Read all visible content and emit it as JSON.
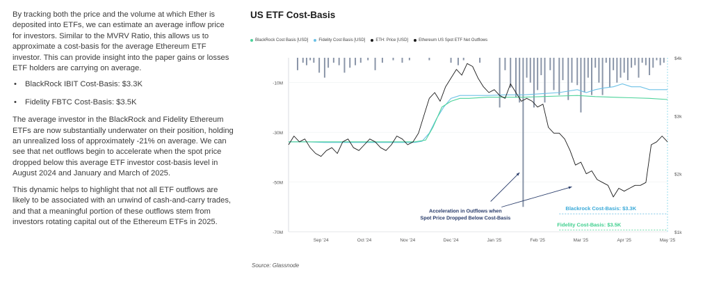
{
  "text": {
    "para1": "By tracking both the price and the volume at which Ether is deposited into ETFs, we can estimate an average inflow price for investors. Similar to the MVRV Ratio, this allows us to approximate a cost-basis for the average Ethereum ETF investor. This can provide insight into the paper gains or losses ETF holders are carrying on average.",
    "bullet1": "BlackRock IBIT Cost-Basis: $3.3K",
    "bullet2": "Fidelity FBTC Cost-Basis: $3.5K",
    "para2": "The average investor in the BlackRock and Fidelity Ethereum ETFs are now substantially underwater on their position, holding an unrealized loss of approximately -21% on average. We can see that net outflows begin to accelerate when the spot price dropped below this average ETF investor cost-basis level in August 2024 and January and March of 2025.",
    "para3": "This dynamic helps to highlight that not all ETF outflows are likely to be associated with an unwind of cash-and-carry trades, and that a meaningful portion of these outflows stem from investors rotating capital out of the Ethereum ETFs in 2025."
  },
  "chart_data": {
    "type": "line",
    "title": "US ETF Cost-Basis",
    "source": "Source: Glassnode",
    "legend": [
      "BlackRock Cost Basis [USD]",
      "Fidelity Cost Basis [USD]",
      "ETH: Price [USD]",
      "Ethereum US Spot ETF Net Outflows"
    ],
    "colors": {
      "blackrock": "#4cd39a",
      "fidelity": "#6cc1e6",
      "price": "#1a1a1a",
      "outflows": "#8a95a8",
      "annotation": "#2a3d6b"
    },
    "x_ticks": [
      "Sep '24",
      "Oct '24",
      "Nov '24",
      "Dec '24",
      "Jan '25",
      "Feb '25",
      "Mar '25",
      "Apr '25",
      "May '25"
    ],
    "left_ticks": [
      "-10M",
      "-30M",
      "-50M",
      "-70M"
    ],
    "right_ticks": [
      "$4k",
      "$3k",
      "$2k",
      "$1k"
    ],
    "left_range": [
      -70,
      0
    ],
    "right_range": [
      1000,
      4000
    ],
    "annotation": [
      "Acceleration in Outflows when",
      "Spot Price Dropped Below Cost-Basis"
    ],
    "blackrock_label": "Blackrock Cost-Basis: $3.3K",
    "fidelity_label": "Fidelity Cost-Basis: $3.5K",
    "price": [
      [
        0,
        2500
      ],
      [
        3,
        2650
      ],
      [
        6,
        2550
      ],
      [
        9,
        2600
      ],
      [
        12,
        2450
      ],
      [
        15,
        2350
      ],
      [
        18,
        2300
      ],
      [
        21,
        2400
      ],
      [
        24,
        2450
      ],
      [
        27,
        2350
      ],
      [
        30,
        2550
      ],
      [
        33,
        2600
      ],
      [
        36,
        2450
      ],
      [
        39,
        2400
      ],
      [
        42,
        2500
      ],
      [
        45,
        2600
      ],
      [
        48,
        2550
      ],
      [
        51,
        2450
      ],
      [
        54,
        2400
      ],
      [
        57,
        2500
      ],
      [
        60,
        2650
      ],
      [
        63,
        2600
      ],
      [
        66,
        2500
      ],
      [
        69,
        2550
      ],
      [
        72,
        2700
      ],
      [
        75,
        3000
      ],
      [
        78,
        3300
      ],
      [
        81,
        3400
      ],
      [
        84,
        3250
      ],
      [
        87,
        3500
      ],
      [
        90,
        3650
      ],
      [
        93,
        3800
      ],
      [
        96,
        3700
      ],
      [
        99,
        3900
      ],
      [
        102,
        3850
      ],
      [
        105,
        3650
      ],
      [
        108,
        3500
      ],
      [
        111,
        3400
      ],
      [
        114,
        3450
      ],
      [
        117,
        3350
      ],
      [
        120,
        3300
      ],
      [
        123,
        3550
      ],
      [
        126,
        3400
      ],
      [
        129,
        3250
      ],
      [
        132,
        3300
      ],
      [
        135,
        3250
      ],
      [
        138,
        3150
      ],
      [
        141,
        3200
      ],
      [
        144,
        2800
      ],
      [
        147,
        2700
      ],
      [
        150,
        2700
      ],
      [
        153,
        2600
      ],
      [
        156,
        2400
      ],
      [
        159,
        2150
      ],
      [
        162,
        2200
      ],
      [
        165,
        2000
      ],
      [
        168,
        2050
      ],
      [
        171,
        1900
      ],
      [
        174,
        1850
      ],
      [
        177,
        1800
      ],
      [
        180,
        1600
      ],
      [
        183,
        1750
      ],
      [
        186,
        1700
      ],
      [
        189,
        1750
      ],
      [
        192,
        1800
      ],
      [
        195,
        1800
      ],
      [
        198,
        1850
      ],
      [
        201,
        2500
      ],
      [
        204,
        2550
      ],
      [
        207,
        2650
      ],
      [
        210,
        2550
      ]
    ],
    "blackrock": [
      [
        0,
        2550
      ],
      [
        10,
        2550
      ],
      [
        20,
        2550
      ],
      [
        30,
        2550
      ],
      [
        40,
        2550
      ],
      [
        50,
        2550
      ],
      [
        60,
        2550
      ],
      [
        70,
        2550
      ],
      [
        76,
        2580
      ],
      [
        80,
        2800
      ],
      [
        85,
        3150
      ],
      [
        90,
        3250
      ],
      [
        95,
        3300
      ],
      [
        100,
        3300
      ],
      [
        110,
        3320
      ],
      [
        120,
        3320
      ],
      [
        130,
        3320
      ],
      [
        140,
        3330
      ],
      [
        150,
        3340
      ],
      [
        160,
        3350
      ],
      [
        170,
        3330
      ],
      [
        180,
        3320
      ],
      [
        190,
        3310
      ],
      [
        200,
        3300
      ],
      [
        210,
        3280
      ]
    ],
    "fidelity": [
      [
        0,
        2550
      ],
      [
        10,
        2550
      ],
      [
        20,
        2540
      ],
      [
        30,
        2540
      ],
      [
        40,
        2540
      ],
      [
        50,
        2540
      ],
      [
        60,
        2540
      ],
      [
        70,
        2540
      ],
      [
        74,
        2560
      ],
      [
        78,
        2700
      ],
      [
        82,
        2950
      ],
      [
        86,
        3150
      ],
      [
        90,
        3300
      ],
      [
        95,
        3350
      ],
      [
        100,
        3350
      ],
      [
        110,
        3350
      ],
      [
        120,
        3360
      ],
      [
        130,
        3360
      ],
      [
        140,
        3380
      ],
      [
        150,
        3400
      ],
      [
        160,
        3450
      ],
      [
        165,
        3400
      ],
      [
        170,
        3450
      ],
      [
        175,
        3480
      ],
      [
        180,
        3500
      ],
      [
        185,
        3550
      ],
      [
        190,
        3500
      ],
      [
        195,
        3500
      ],
      [
        200,
        3450
      ],
      [
        205,
        3450
      ],
      [
        210,
        3450
      ]
    ],
    "outflows": [
      [
        5,
        -5
      ],
      [
        8,
        -2
      ],
      [
        10,
        -3
      ],
      [
        12,
        -1
      ],
      [
        14,
        -2
      ],
      [
        17,
        -6
      ],
      [
        20,
        -8
      ],
      [
        22,
        -4
      ],
      [
        25,
        -2
      ],
      [
        28,
        -3
      ],
      [
        31,
        -6
      ],
      [
        34,
        -4
      ],
      [
        37,
        -3
      ],
      [
        40,
        -2
      ],
      [
        44,
        -1
      ],
      [
        48,
        -5
      ],
      [
        52,
        -2
      ],
      [
        58,
        -1
      ],
      [
        63,
        -2
      ],
      [
        67,
        -1
      ],
      [
        78,
        -1
      ],
      [
        90,
        -2
      ],
      [
        94,
        -3
      ],
      [
        97,
        -1
      ],
      [
        106,
        -2
      ],
      [
        117,
        -20
      ],
      [
        120,
        -5
      ],
      [
        123,
        -12
      ],
      [
        126,
        -16
      ],
      [
        128,
        -18
      ],
      [
        130,
        -60
      ],
      [
        132,
        -8
      ],
      [
        134,
        -10
      ],
      [
        136,
        -20
      ],
      [
        138,
        -13
      ],
      [
        140,
        -7
      ],
      [
        142,
        -18
      ],
      [
        145,
        -5
      ],
      [
        147,
        -13
      ],
      [
        150,
        -15
      ],
      [
        152,
        -9
      ],
      [
        155,
        -17
      ],
      [
        157,
        -10
      ],
      [
        160,
        -11
      ],
      [
        162,
        -22
      ],
      [
        164,
        -14
      ],
      [
        166,
        -8
      ],
      [
        168,
        -15
      ],
      [
        170,
        -4
      ],
      [
        172,
        -10
      ],
      [
        174,
        -15
      ],
      [
        176,
        -2
      ],
      [
        178,
        -12
      ],
      [
        180,
        -5
      ],
      [
        182,
        -10
      ],
      [
        184,
        -8
      ],
      [
        186,
        -6
      ],
      [
        188,
        -9
      ],
      [
        190,
        -4
      ],
      [
        192,
        -3
      ],
      [
        194,
        -8
      ],
      [
        196,
        -2
      ],
      [
        198,
        -3
      ],
      [
        200,
        -7
      ],
      [
        202,
        -4
      ],
      [
        204,
        -1
      ],
      [
        206,
        -3
      ],
      [
        208,
        -2
      ]
    ]
  }
}
